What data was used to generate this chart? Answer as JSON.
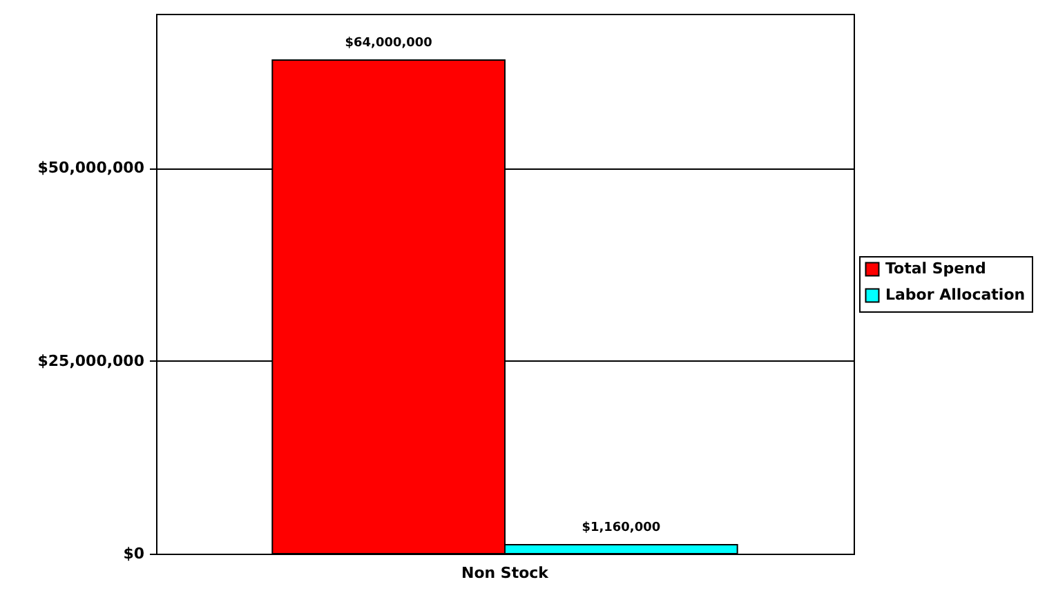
{
  "chart_data": {
    "type": "bar",
    "categories": [
      "Non Stock"
    ],
    "series": [
      {
        "name": "Total Spend",
        "color": "#ff0000",
        "values": [
          64000000
        ],
        "value_labels": [
          "$64,000,000"
        ]
      },
      {
        "name": "Labor Allocation",
        "color": "#00ffff",
        "values": [
          1160000
        ],
        "value_labels": [
          "$1,160,000"
        ]
      }
    ],
    "ylim": [
      0,
      70000000
    ],
    "yticks": [
      {
        "value": 0,
        "label": "$0"
      },
      {
        "value": 25000000,
        "label": "$25,000,000"
      },
      {
        "value": 50000000,
        "label": "$50,000,000"
      }
    ],
    "grid": "y",
    "legend": "right"
  }
}
